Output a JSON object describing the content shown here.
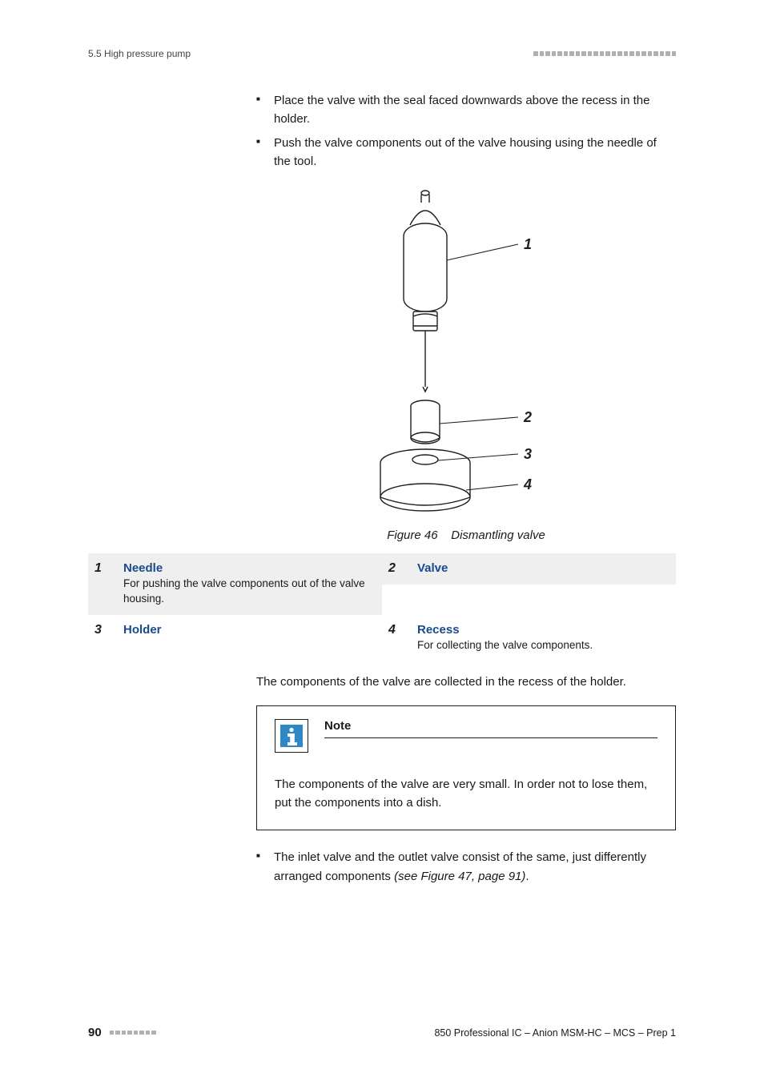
{
  "header": {
    "section_label": "5.5 High pressure pump",
    "right_square_count": 24,
    "square_color": "#b0b0b0"
  },
  "instructions": {
    "items": [
      "Place the valve with the seal faced downwards above the recess in the holder.",
      "Push the valve components out of the valve housing using the needle of the tool."
    ]
  },
  "figure": {
    "labels": {
      "l1": "1",
      "l2": "2",
      "l3": "3",
      "l4": "4"
    },
    "caption_prefix": "Figure 46",
    "caption_text": "Dismantling valve",
    "colors": {
      "stroke": "#1f1f1f",
      "fill": "#ffffff"
    }
  },
  "legend": {
    "rows": [
      {
        "shaded": true,
        "left": {
          "num": "1",
          "title": "Needle",
          "desc": "For pushing the valve components out of the valve housing."
        },
        "right": {
          "num": "2",
          "title": "Valve",
          "desc": ""
        }
      },
      {
        "shaded": false,
        "left": {
          "num": "3",
          "title": "Holder",
          "desc": ""
        },
        "right": {
          "num": "4",
          "title": "Recess",
          "desc": "For collecting the valve components."
        }
      }
    ],
    "shaded_bg": "#efefef",
    "title_color": "#194a8a"
  },
  "mid_para": "The components of the valve are collected in the recess of the holder.",
  "note": {
    "title": "Note",
    "body": "The components of the valve are very small. In order not to lose them, put the components into a dish.",
    "icon_colors": {
      "bg": "#2f88c5",
      "symbol": "#ffffff",
      "border": "#1a1a1a"
    }
  },
  "post_items": {
    "items": [
      {
        "text": "The inlet valve and the outlet valve consist of the same, just differently arranged components ",
        "ref": "(see Figure 47, page 91)",
        "suffix": "."
      }
    ]
  },
  "footer": {
    "page_number": "90",
    "left_square_count": 8,
    "doc_title": "850 Professional IC – Anion MSM-HC – MCS – Prep 1"
  }
}
